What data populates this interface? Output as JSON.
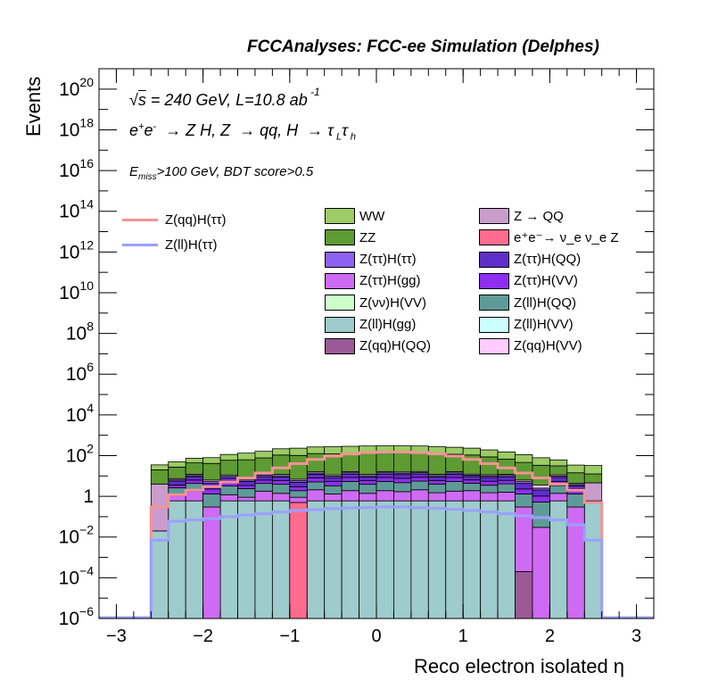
{
  "header": {
    "title": "FCCAnalyses: FCC-ee Simulation (Delphes)",
    "line1": "√s = 240 GeV, L=10.8 ab⁻¹",
    "line2": "e⁺e⁻ → Z H, Z → qq, H → τ_L τ_h",
    "line3": "E_miss>100 GeV, BDT score>0.5"
  },
  "chart_data": {
    "type": "histogram-stacked",
    "title": "FCCAnalyses: FCC-ee Simulation (Delphes)",
    "xlabel": "Reco electron isolated η",
    "ylabel": "Events",
    "xlim": [
      -3.2,
      3.2
    ],
    "ylim": [
      1e-06,
      1e+21
    ],
    "ylog": true,
    "x_ticks": [
      "−3",
      "−2",
      "−1",
      "0",
      "1",
      "2",
      "3"
    ],
    "y_ticks": [
      "10^-6",
      "10^-4",
      "10^-2",
      "1",
      "10^2",
      "10^4",
      "10^6",
      "10^8",
      "10^10",
      "10^12",
      "10^14",
      "10^16",
      "10^18",
      "10^20"
    ],
    "bin_edges": [
      -2.6,
      -2.4,
      -2.2,
      -2.0,
      -1.8,
      -1.6,
      -1.4,
      -1.2,
      -1.0,
      -0.8,
      -0.6,
      -0.4,
      -0.2,
      0.0,
      0.2,
      0.4,
      0.6,
      0.8,
      1.0,
      1.2,
      1.4,
      1.6,
      1.8,
      2.0,
      2.2,
      2.4,
      2.6
    ],
    "stack": [
      {
        "name": "Z(ll)H(gg)",
        "color": "#9ecbcc",
        "values": [
          0.02,
          0.6,
          0.6,
          0,
          0.6,
          0.6,
          0.6,
          0.6,
          0,
          0.6,
          0.6,
          0.6,
          0.6,
          0.6,
          0.6,
          0.6,
          0.6,
          0.6,
          0.6,
          0.6,
          0.6,
          0,
          0,
          0.6,
          0,
          0.6
        ]
      },
      {
        "name": "e⁺e⁻→ ν_e ν_e Z",
        "color": "#ff6b8e",
        "values": [
          0,
          0,
          0,
          0,
          0,
          0,
          0,
          0,
          0.5,
          0,
          0,
          0,
          0,
          0,
          0,
          0,
          0,
          0,
          0,
          0,
          0,
          0,
          0,
          0,
          0,
          0
        ]
      },
      {
        "name": "Z(qq)H(QQ)",
        "color": "#9b5a96",
        "values": [
          0,
          0,
          0,
          0,
          0,
          0,
          0,
          0,
          0,
          0,
          0,
          0,
          0,
          0,
          0,
          0,
          0,
          0,
          0,
          0,
          0,
          0.0002,
          0,
          0,
          0,
          0
        ]
      },
      {
        "name": "Z(ττ)H(gg)",
        "color": "#cf6af5",
        "values": [
          0,
          0.5,
          1.2,
          0.3,
          0.6,
          0.3,
          1.2,
          0.8,
          0.4,
          1.5,
          0.7,
          1.3,
          0.8,
          1.3,
          1.1,
          1.5,
          0.9,
          1.2,
          1.3,
          0.9,
          1.0,
          0.3,
          0.03,
          0.8,
          0.3,
          0
        ]
      },
      {
        "name": "Z(ll)H(QQ)",
        "color": "#5e9b98",
        "values": [
          0,
          1.5,
          2.5,
          1.0,
          2.0,
          1.5,
          2.5,
          2.5,
          1.0,
          3.0,
          2.0,
          3.5,
          2.5,
          3.5,
          3.0,
          3.5,
          2.5,
          3.5,
          2.5,
          2.0,
          2.5,
          1.0,
          0.5,
          2.0,
          1.0,
          0
        ]
      },
      {
        "name": "Z(ττ)H(VV)",
        "color": "#8e2ff0",
        "values": [
          0,
          1.0,
          2.0,
          1.0,
          2.0,
          1.0,
          2.0,
          2.0,
          1.0,
          3.0,
          2.0,
          3.0,
          2.0,
          3.0,
          3.0,
          3.0,
          2.0,
          3.0,
          2.0,
          2.0,
          2.0,
          1.0,
          0.5,
          2.0,
          1.0,
          0
        ]
      },
      {
        "name": "Z(ττ)H(QQ)",
        "color": "#5f2ec9",
        "values": [
          0,
          2.0,
          3.0,
          2.0,
          3.0,
          2.0,
          3.0,
          3.0,
          2.0,
          4.0,
          3.0,
          4.0,
          3.0,
          4.0,
          4.0,
          4.0,
          3.0,
          4.0,
          3.0,
          3.0,
          3.0,
          2.0,
          1.0,
          3.0,
          1.0,
          0
        ]
      },
      {
        "name": "Z(ττ)H(ττ)",
        "color": "#8d62f2",
        "values": [
          0,
          0.8,
          1.2,
          1.0,
          1.5,
          1.0,
          1.5,
          1.5,
          1.0,
          2.0,
          1.5,
          2.0,
          1.5,
          2.0,
          2.0,
          2.0,
          1.5,
          2.0,
          1.5,
          1.5,
          1.5,
          1.0,
          0.5,
          1.5,
          0.5,
          0
        ]
      },
      {
        "name": "Z(qq)H(VV)",
        "color": "#ffccff",
        "values": [
          0,
          1.0,
          1.5,
          1.0,
          1.5,
          1.0,
          1.5,
          1.5,
          1.0,
          2.0,
          1.5,
          2.0,
          1.5,
          2.0,
          2.0,
          2.0,
          1.5,
          2.0,
          1.5,
          1.5,
          1.5,
          1.0,
          1.0,
          1.5,
          0.5,
          0
        ]
      },
      {
        "name": "Z → QQ",
        "color": "#c99ccc",
        "values": [
          4.0,
          0,
          0,
          0,
          0,
          0,
          0,
          0,
          0,
          0,
          0,
          0,
          0,
          0,
          0,
          0,
          0,
          0,
          0,
          0,
          0,
          0,
          0,
          0,
          0,
          4.0
        ]
      },
      {
        "name": "ZZ",
        "color": "#5e9b32",
        "values": [
          16,
          20,
          32,
          35,
          48,
          55,
          65,
          95,
          95,
          110,
          110,
          110,
          120,
          120,
          120,
          120,
          110,
          100,
          95,
          75,
          55,
          40,
          30,
          20,
          10,
          8
        ]
      },
      {
        "name": "WW",
        "color": "#9ccc65",
        "values": [
          15,
          22,
          30,
          38,
          55,
          70,
          85,
          110,
          130,
          140,
          150,
          160,
          165,
          165,
          165,
          160,
          150,
          140,
          125,
          105,
          85,
          65,
          45,
          30,
          20,
          20
        ]
      }
    ],
    "lines": [
      {
        "name": "Z(qq)H(ττ)",
        "color": "#f69296",
        "values": [
          0.3,
          1.2,
          2.0,
          3.0,
          5.0,
          8.0,
          14,
          25,
          40,
          65,
          95,
          120,
          140,
          150,
          150,
          140,
          120,
          95,
          65,
          40,
          25,
          14,
          8,
          4,
          2,
          0.5
        ]
      },
      {
        "name": "Z(ll)H(ττ)",
        "color": "#9aa0ff",
        "values": [
          0.007,
          0.06,
          0.07,
          0.08,
          0.1,
          0.12,
          0.14,
          0.17,
          0.2,
          0.22,
          0.25,
          0.27,
          0.28,
          0.3,
          0.3,
          0.28,
          0.26,
          0.23,
          0.2,
          0.17,
          0.14,
          0.11,
          0.09,
          0.07,
          0.04,
          0.007
        ]
      }
    ]
  },
  "legend": {
    "lines": [
      {
        "label": "Z(qq)H(ττ)",
        "color": "#f69296"
      },
      {
        "label": "Z(ll)H(ττ)",
        "color": "#9aa0ff"
      }
    ],
    "boxes": [
      {
        "label": "WW",
        "color": "#9ccc65"
      },
      {
        "label": "Z → QQ",
        "color": "#c99ccc"
      },
      {
        "label": "ZZ",
        "color": "#5e9b32"
      },
      {
        "label": "e⁺e⁻→ ν_e ν_e Z",
        "color": "#ff6b8e"
      },
      {
        "label": "Z(ττ)H(ττ)",
        "color": "#8d62f2"
      },
      {
        "label": "Z(ττ)H(QQ)",
        "color": "#5f2ec9"
      },
      {
        "label": "Z(ττ)H(gg)",
        "color": "#cf6af5"
      },
      {
        "label": "Z(ττ)H(VV)",
        "color": "#8e2ff0"
      },
      {
        "label": "Z(νν)H(VV)",
        "color": "#ccffcc"
      },
      {
        "label": "Z(ll)H(QQ)",
        "color": "#5e9b98"
      },
      {
        "label": "Z(ll)H(gg)",
        "color": "#9ecbcc"
      },
      {
        "label": "Z(ll)H(VV)",
        "color": "#ccffff"
      },
      {
        "label": "Z(qq)H(QQ)",
        "color": "#9b5a96"
      },
      {
        "label": "Z(qq)H(VV)",
        "color": "#ffccff"
      }
    ]
  }
}
